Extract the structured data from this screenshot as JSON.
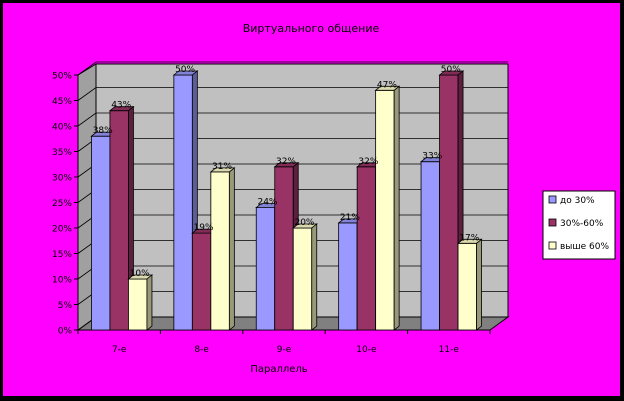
{
  "colors": {
    "background": "#ff00ff",
    "frame": "#000000",
    "plot_wall": "#c0c0c0",
    "series": [
      "#9999ff",
      "#993366",
      "#ffffcc"
    ]
  },
  "chart_data": {
    "type": "bar",
    "title": "Виртуального общение",
    "xlabel": "Параллель",
    "ylabel": "",
    "categories": [
      "7-е",
      "8-е",
      "9-е",
      "10-е",
      "11-е"
    ],
    "series": [
      {
        "name": "до 30%",
        "values": [
          38,
          50,
          24,
          21,
          33
        ],
        "labels": [
          "38%",
          "50%",
          "24%",
          "21%",
          "33%"
        ]
      },
      {
        "name": "30%-60%",
        "values": [
          43,
          19,
          32,
          32,
          50
        ],
        "labels": [
          "43%",
          "19%",
          "32%",
          "32%",
          "50%"
        ]
      },
      {
        "name": "выше 60%",
        "values": [
          10,
          31,
          20,
          47,
          17
        ],
        "labels": [
          "10%",
          "31%",
          "20%",
          "47%",
          "17%"
        ]
      }
    ],
    "ylim": [
      0,
      50
    ],
    "y_ticks": [
      "0%",
      "5%",
      "10%",
      "15%",
      "20%",
      "25%",
      "30%",
      "35%",
      "40%",
      "45%",
      "50%"
    ],
    "grid": true,
    "three_d": true,
    "legend_position": "right"
  }
}
